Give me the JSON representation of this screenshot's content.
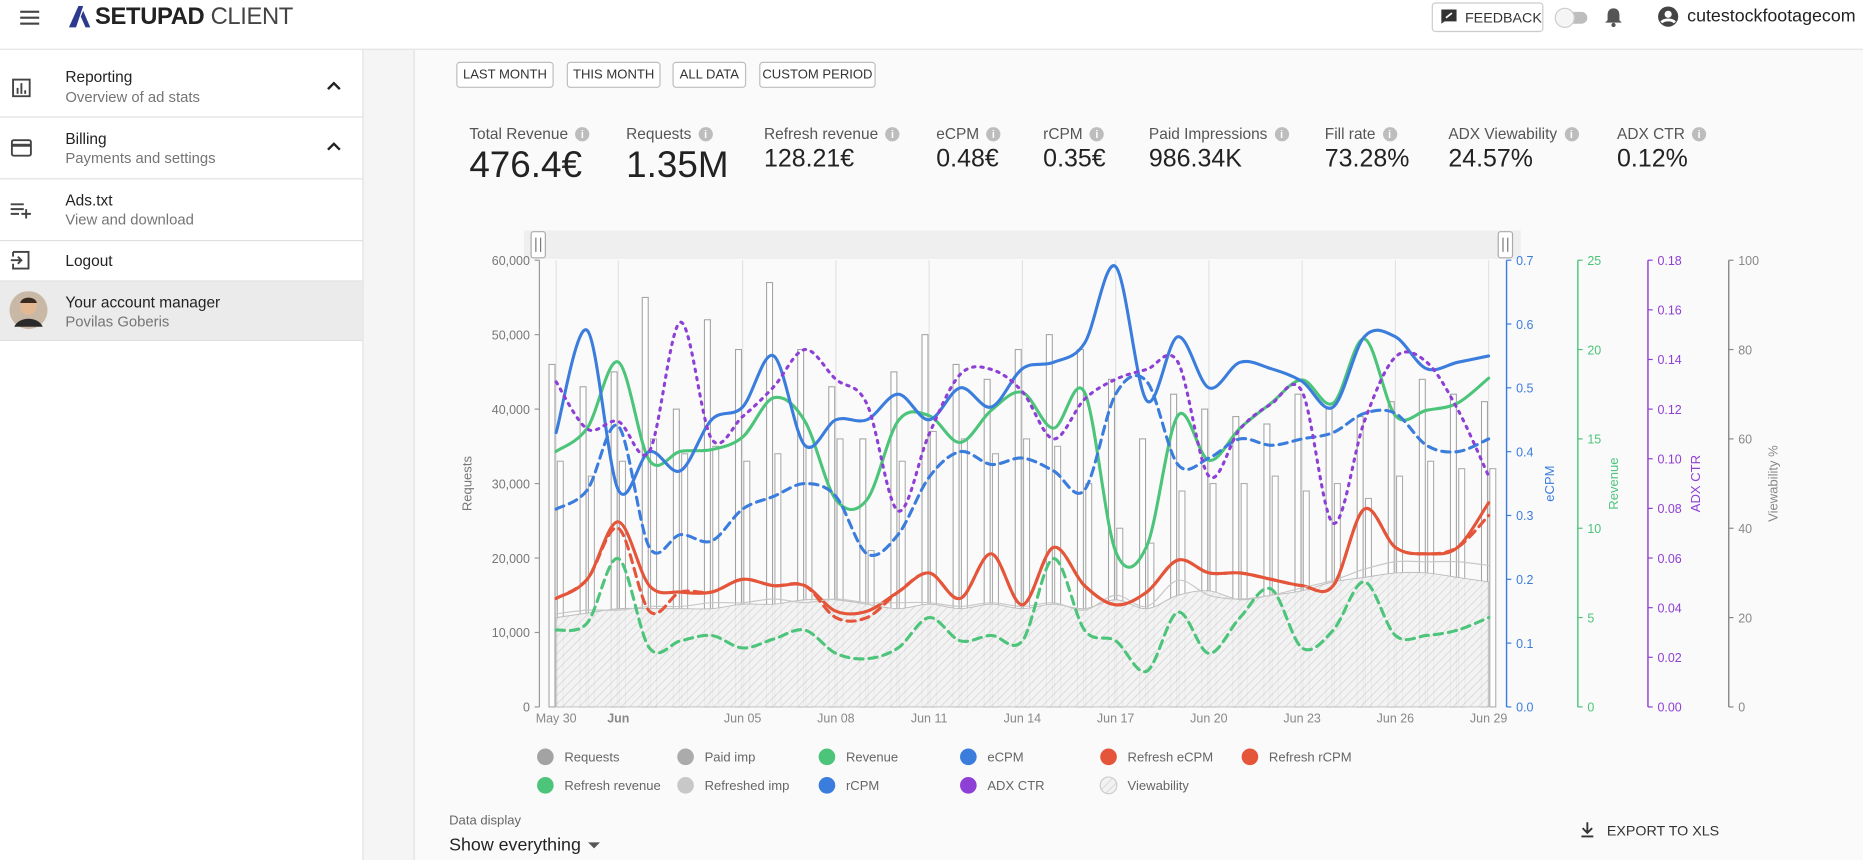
{
  "header": {
    "brand_bold": "SETUPAD",
    "brand_light": "CLIENT",
    "feedback": "FEEDBACK",
    "user": "cutestockfootagecom"
  },
  "sidebar": [
    {
      "title": "Reporting",
      "subtitle": "Overview of ad stats"
    },
    {
      "title": "Billing",
      "subtitle": "Payments and settings"
    },
    {
      "title": "Ads.txt",
      "subtitle": "View and download"
    },
    {
      "title": "Logout"
    },
    {
      "title": "Your account manager",
      "subtitle": "Povilas Goberis"
    }
  ],
  "period_buttons": [
    "LAST MONTH",
    "THIS MONTH",
    "ALL DATA",
    "CUSTOM PERIOD"
  ],
  "stats": [
    {
      "label": "Total Revenue",
      "value": "476.4€"
    },
    {
      "label": "Requests",
      "value": "1.35M"
    },
    {
      "label": "Refresh revenue",
      "value": "128.21€"
    },
    {
      "label": "eCPM",
      "value": "0.48€"
    },
    {
      "label": "rCPM",
      "value": "0.35€"
    },
    {
      "label": "Paid Impressions",
      "value": "986.34K"
    },
    {
      "label": "Fill rate",
      "value": "73.28%"
    },
    {
      "label": "ADX Viewability",
      "value": "24.57%"
    },
    {
      "label": "ADX CTR",
      "value": "0.12%"
    }
  ],
  "chart_data": {
    "type": "combo",
    "grid": true,
    "categories": [
      "May 30",
      null,
      "Jun",
      null,
      null,
      null,
      "Jun 05",
      null,
      null,
      "Jun 08",
      null,
      null,
      "Jun 11",
      null,
      null,
      "Jun 14",
      null,
      null,
      "Jun 17",
      null,
      null,
      "Jun 20",
      null,
      null,
      "Jun 23",
      null,
      null,
      "Jun 26",
      null,
      null,
      "Jun 29"
    ],
    "ylabel": "Requests",
    "ylim": [
      0,
      60000
    ],
    "yticks": [
      0,
      {
        "value": 10000,
        "label": "10,000"
      },
      {
        "value": 20000,
        "label": "20,000"
      },
      {
        "value": 30000,
        "label": "30,000"
      },
      {
        "value": 40000,
        "label": "40,000"
      },
      {
        "value": 50000,
        "label": "50,000"
      },
      {
        "value": 60000,
        "label": "60,000"
      }
    ],
    "y2label": "eCPM",
    "y2color": "#3b7ddd",
    "y2lim": [
      0,
      0.7
    ],
    "y2ticks": [
      {
        "value": 0,
        "label": "0.0"
      },
      0.1,
      0.2,
      0.3,
      0.4,
      0.5,
      0.6,
      0.7
    ],
    "y3label": "Revenue",
    "y3color": "#4cc47a",
    "y3lim": [
      0,
      25
    ],
    "y3ticks": [
      0,
      5,
      10,
      15,
      20,
      25
    ],
    "y4label": "ADX CTR",
    "y4color": "#8e3fd6",
    "y4lim": [
      0,
      0.18
    ],
    "y4ticks": [
      {
        "value": 0,
        "label": "0.00"
      },
      {
        "value": 0.02,
        "label": "0.02"
      },
      {
        "value": 0.04,
        "label": "0.04"
      },
      {
        "value": 0.06,
        "label": "0.06"
      },
      {
        "value": 0.08,
        "label": "0.08"
      },
      {
        "value": 0.1,
        "label": "0.10"
      },
      {
        "value": 0.12,
        "label": "0.12"
      },
      {
        "value": 0.14,
        "label": "0.14"
      },
      {
        "value": 0.16,
        "label": "0.16"
      },
      {
        "value": 0.18,
        "label": "0.18"
      }
    ],
    "y5label": "Viewability %",
    "y5color": "#888888",
    "y5lim": [
      0,
      100
    ],
    "y5ticks": [
      0,
      20,
      40,
      60,
      80,
      100
    ],
    "series": [
      {
        "name": "Requests",
        "color": "#a3a3a3",
        "style": "bar",
        "axis": "y",
        "values": [
          46000,
          43000,
          45000,
          55000,
          40000,
          52000,
          48000,
          57000,
          48000,
          43000,
          36000,
          45000,
          50000,
          46000,
          44000,
          48000,
          50000,
          48000,
          44000,
          36000,
          42000,
          40000,
          39000,
          38000,
          42000,
          40000,
          39000,
          41000,
          44000,
          42000,
          41000
        ]
      },
      {
        "name": "Paid imp",
        "color": "#ababab",
        "style": "bar",
        "axis": "y",
        "values": [
          33000,
          31000,
          33000,
          36000,
          34000,
          35000,
          33000,
          34000,
          35000,
          36000,
          21000,
          33000,
          37000,
          36000,
          34000,
          36000,
          35000,
          30000,
          24000,
          22000,
          29000,
          30000,
          30000,
          31000,
          29000,
          30000,
          28000,
          31000,
          33000,
          32000,
          32000
        ]
      },
      {
        "name": "Revenue",
        "color": "#4cc47a",
        "style": "line",
        "axis": "y3",
        "values": [
          14.3,
          15.6,
          19.3,
          13.8,
          14.3,
          14.4,
          15.1,
          17.3,
          16.0,
          11.6,
          11.6,
          16.0,
          16.3,
          14.8,
          16.6,
          17.6,
          15.6,
          17.6,
          8.7,
          9.0,
          16.3,
          13.8,
          15.6,
          17.0,
          18.3,
          17.0,
          20.6,
          16.3,
          16.6,
          17.0,
          18.4
        ]
      },
      {
        "name": "eCPM",
        "color": "#3b7ddd",
        "style": "line",
        "axis": "y2",
        "values": [
          0.43,
          0.59,
          0.34,
          0.4,
          0.37,
          0.45,
          0.47,
          0.55,
          0.41,
          0.45,
          0.45,
          0.49,
          0.45,
          0.5,
          0.47,
          0.53,
          0.54,
          0.57,
          0.69,
          0.48,
          0.58,
          0.5,
          0.54,
          0.53,
          0.51,
          0.47,
          0.58,
          0.58,
          0.53,
          0.54,
          0.55
        ]
      },
      {
        "name": "Refresh eCPM",
        "color": "#e4553a",
        "style": "line",
        "axis": "y2",
        "values": [
          0.17,
          0.2,
          0.29,
          0.19,
          0.18,
          0.18,
          0.2,
          0.19,
          0.19,
          0.15,
          0.15,
          0.18,
          0.21,
          0.17,
          0.24,
          0.16,
          0.25,
          0.19,
          0.16,
          0.18,
          0.23,
          0.21,
          0.21,
          0.2,
          0.19,
          0.19,
          0.31,
          0.25,
          0.24,
          0.25,
          0.32
        ]
      },
      {
        "name": "Refresh rCPM",
        "color": "#e4553a",
        "style": "dashed",
        "axis": "y2",
        "values": [
          0.17,
          0.2,
          0.28,
          0.15,
          0.18,
          0.18,
          0.2,
          0.19,
          0.19,
          0.14,
          0.14,
          0.18,
          0.21,
          0.17,
          0.24,
          0.16,
          0.25,
          0.19,
          0.16,
          0.18,
          0.23,
          0.21,
          0.21,
          0.2,
          0.19,
          0.19,
          0.31,
          0.25,
          0.24,
          0.25,
          0.3
        ]
      },
      {
        "name": "Refresh revenue",
        "color": "#4cc47a",
        "style": "dashed",
        "axis": "y3",
        "values": [
          4.3,
          4.7,
          8.3,
          3.3,
          3.7,
          4.0,
          3.3,
          3.8,
          4.3,
          3.0,
          2.7,
          3.3,
          5.0,
          3.7,
          4.0,
          3.7,
          8.3,
          4.3,
          3.7,
          2.0,
          5.3,
          3.0,
          5.0,
          6.6,
          3.3,
          4.3,
          7.0,
          4.0,
          4.0,
          4.3,
          5.0
        ]
      },
      {
        "name": "Refreshed imp",
        "color": "#c8c8c8",
        "style": "line",
        "axis": "y",
        "values": [
          12500,
          13000,
          13000,
          13500,
          13500,
          14000,
          14000,
          14500,
          14000,
          14500,
          14000,
          14000,
          14000,
          13500,
          14000,
          13500,
          14000,
          13000,
          15000,
          13500,
          17000,
          15000,
          14500,
          15000,
          16000,
          17000,
          18500,
          19500,
          19500,
          19500,
          19000
        ]
      },
      {
        "name": "rCPM",
        "color": "#3b7ddd",
        "style": "dashed",
        "axis": "y2",
        "values": [
          0.31,
          0.34,
          0.44,
          0.25,
          0.27,
          0.26,
          0.31,
          0.33,
          0.35,
          0.33,
          0.24,
          0.27,
          0.36,
          0.4,
          0.38,
          0.39,
          0.37,
          0.34,
          0.49,
          0.51,
          0.38,
          0.39,
          0.42,
          0.41,
          0.42,
          0.43,
          0.46,
          0.46,
          0.41,
          0.4,
          0.42
        ]
      },
      {
        "name": "ADX CTR",
        "color": "#8e3fd6",
        "style": "dotted",
        "axis": "y4",
        "values": [
          0.131,
          0.112,
          0.115,
          0.103,
          0.155,
          0.108,
          0.117,
          0.129,
          0.144,
          0.132,
          0.122,
          0.079,
          0.11,
          0.134,
          0.136,
          0.127,
          0.108,
          0.124,
          0.132,
          0.136,
          0.139,
          0.093,
          0.112,
          0.122,
          0.127,
          0.074,
          0.115,
          0.141,
          0.139,
          0.12,
          0.093
        ]
      },
      {
        "name": "Viewability",
        "color": "#bdbdbd",
        "style": "area",
        "axis": "y5",
        "values": [
          20,
          21,
          22,
          22,
          22,
          22,
          23,
          23,
          24,
          24,
          23,
          22,
          23,
          22,
          23,
          22,
          23,
          22,
          24,
          22,
          25,
          26,
          24,
          25,
          26,
          28,
          29,
          30,
          30,
          29,
          28
        ]
      }
    ]
  },
  "footer": {
    "data_display_label": "Data display",
    "data_display_value": "Show everything",
    "export": "EXPORT TO XLS"
  }
}
